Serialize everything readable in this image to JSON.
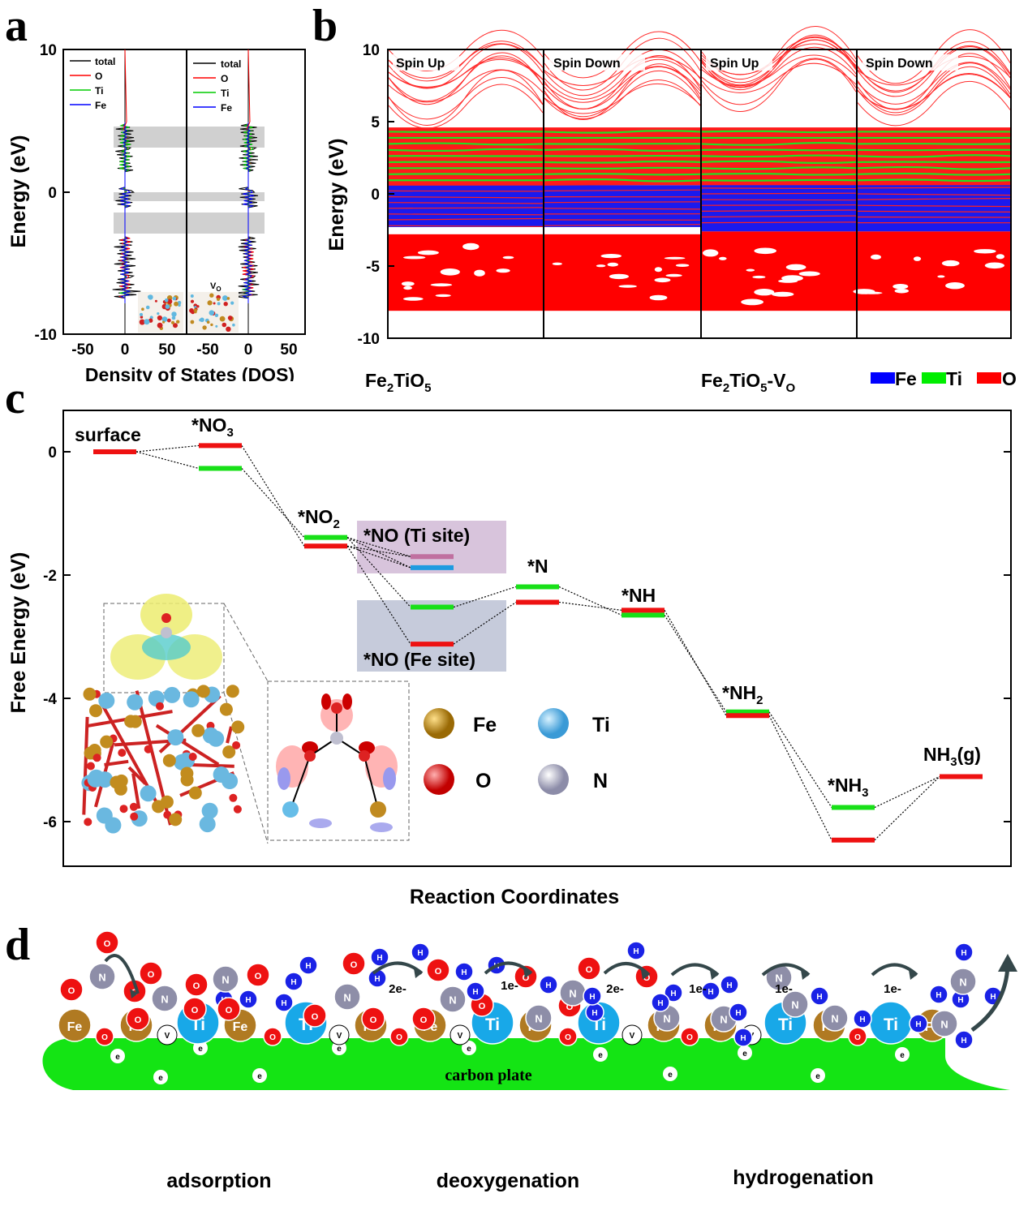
{
  "panel_labels": [
    "a",
    "b",
    "c",
    "d"
  ],
  "legend_colors": {
    "total": "#000000",
    "O": "#ff0000",
    "Ti": "#00cc00",
    "Fe": "#0000ff",
    "Ti_site": "#c070a0",
    "Ti_site2": "#1e9be0"
  },
  "chart_data": [
    {
      "id": "a",
      "type": "line",
      "xlabel": "Density of States (DOS)",
      "ylabel": "Energy (eV)",
      "xticks_left": [
        "-50",
        "0",
        "50"
      ],
      "xticks_right": [
        "-50",
        "0",
        "50"
      ],
      "yticks": [
        "10",
        "0",
        "-10"
      ],
      "ylim": [
        -10,
        10
      ],
      "legend": [
        "total",
        "O",
        "Ti",
        "Fe"
      ],
      "inset_label_sub": "O",
      "inset_label_main": "V"
    },
    {
      "id": "b",
      "type": "line",
      "ylabel": "Energy (eV)",
      "yticks": [
        "10",
        "5",
        "0",
        "-5",
        "-10"
      ],
      "ylim": [
        -10,
        10
      ],
      "subpanels": [
        "Spin Up",
        "Spin Down",
        "Spin Up",
        "Spin Down"
      ],
      "material_left_main": "Fe",
      "material_left_sub1": "2",
      "material_left_mid": "TiO",
      "material_left_sub2": "5",
      "material_right_sub3": "O",
      "material_right_suffix": "-V",
      "legend": [
        "Fe",
        "Ti",
        "O"
      ]
    },
    {
      "id": "c",
      "type": "line",
      "ylabel": "Free Energy (eV)",
      "xlabel": "Reaction Coordinates",
      "yticks": [
        "0",
        "-2",
        "-4",
        "-6"
      ],
      "ylim": [
        -6.5,
        0.6
      ],
      "states": [
        "surface",
        "*NO3",
        "*NO2",
        "*NO (Ti site)",
        "*NO (Fe site)",
        "*N",
        "*NH",
        "*NH2",
        "*NH3",
        "NH3(g)"
      ],
      "series": [
        {
          "color": "green",
          "values": [
            0.0,
            -0.27,
            -1.39,
            -2.52,
            -2.19,
            -2.65,
            -4.22,
            -5.77,
            -5.27
          ]
        },
        {
          "color": "red",
          "values": [
            0.0,
            0.1,
            -1.53,
            -3.12,
            -2.44,
            -2.57,
            -4.28,
            -6.3,
            -5.27
          ]
        }
      ],
      "ti_site": {
        "pink": -1.7,
        "blue": -1.88
      },
      "atoms": [
        "Fe",
        "Ti",
        "O",
        "N"
      ]
    }
  ],
  "panel_d": {
    "stages": [
      "adsorption",
      "deoxygenation",
      "hydrogenation"
    ],
    "support": "carbon plate",
    "electron_labels": [
      "2e-",
      "1e-",
      "2e-",
      "1e-",
      "1e-",
      "1e-"
    ],
    "surface_atoms": [
      "Fe",
      "O",
      "Fe",
      "Vo",
      "Ti",
      "Fe",
      "O",
      "Ti",
      "Vo",
      "Fe",
      "O",
      "Fe",
      "Vo",
      "Ti",
      "Fe",
      "O",
      "Ti",
      "Vo",
      "Fe",
      "O",
      "Fe",
      "Vo",
      "Ti",
      "Fe",
      "O",
      "Ti",
      "Fe"
    ]
  }
}
